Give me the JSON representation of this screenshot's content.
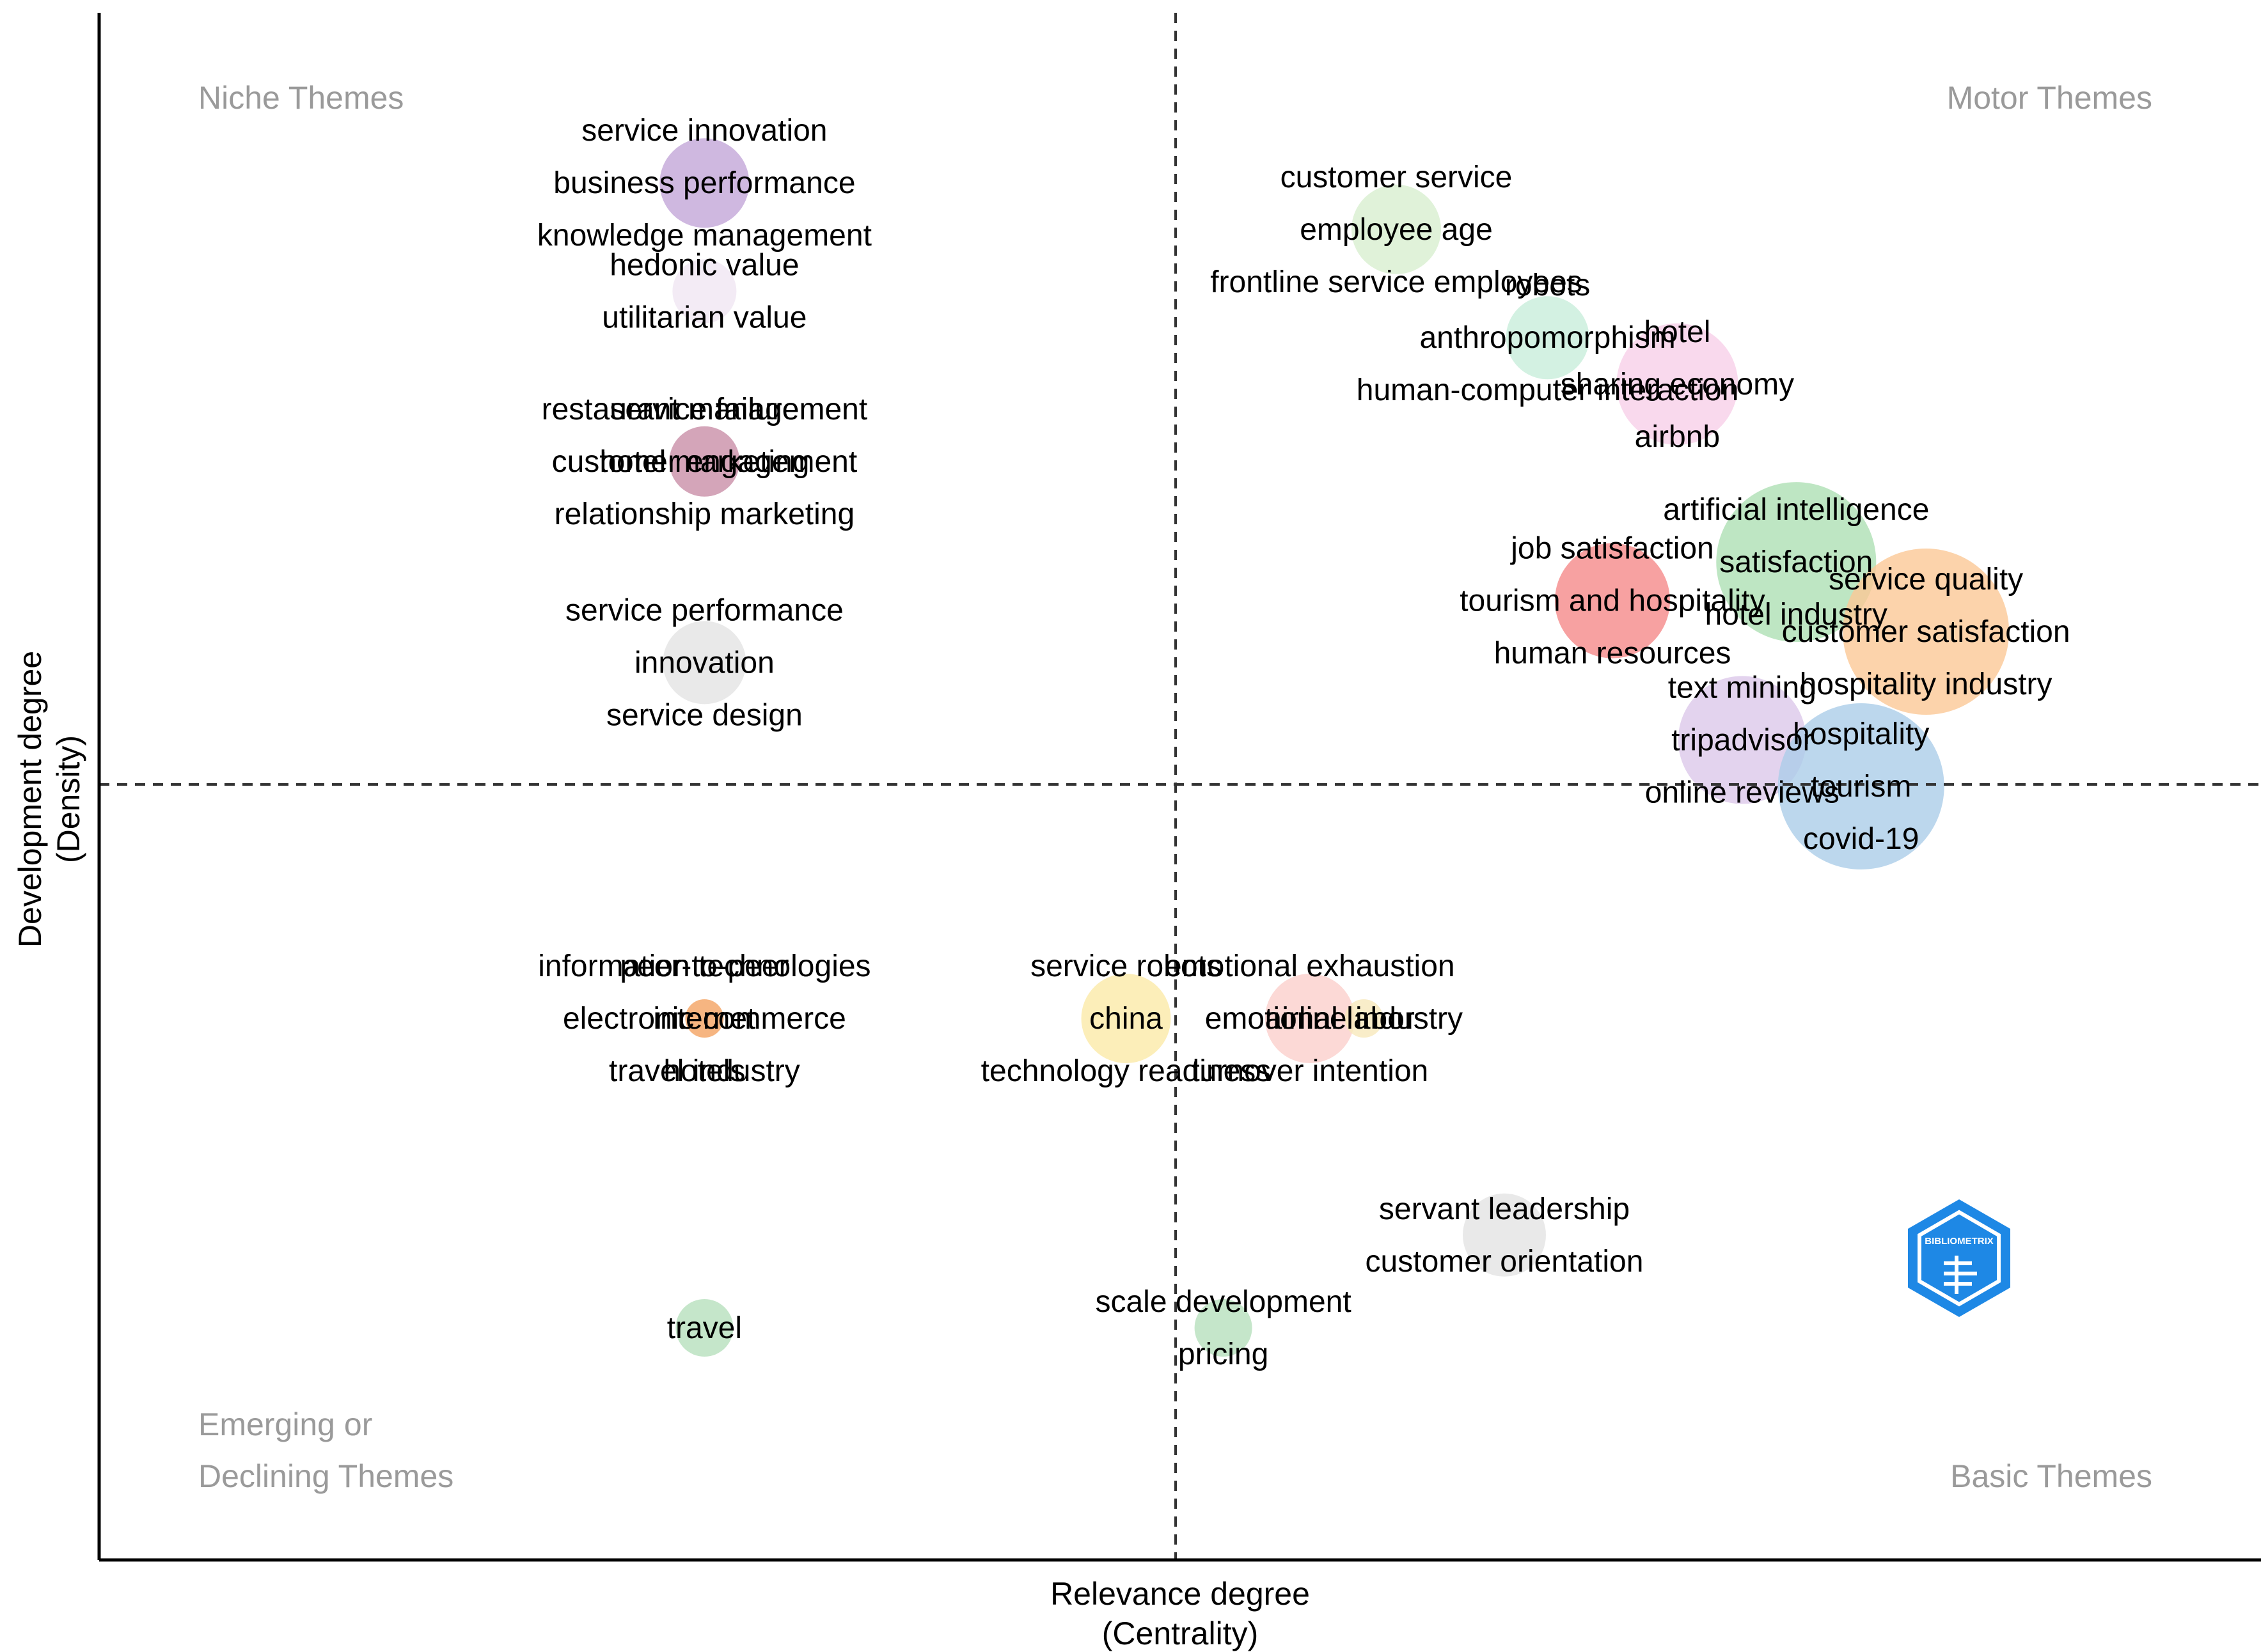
{
  "chart_data": {
    "type": "scatter",
    "subtype": "thematic-map",
    "xlabel": [
      "Relevance degree",
      "(Centrality)"
    ],
    "ylabel": [
      "Development degree",
      "(Density)"
    ],
    "xlim": [
      0,
      10
    ],
    "ylim": [
      0,
      10
    ],
    "x_ref": 4.75,
    "y_ref": 5.0,
    "grid": false,
    "quadrant_labels": {
      "top_left": [
        "Niche Themes"
      ],
      "top_right": [
        "Motor Themes"
      ],
      "bottom_left": [
        "Emerging or",
        "Declining Themes"
      ],
      "bottom_right": [
        "Basic Themes"
      ]
    },
    "logo": {
      "text": "BIBLIOMETRIX",
      "color": "#1e88e5"
    },
    "themes": [
      {
        "x": 2.8,
        "y": 8.9,
        "size": 1.0,
        "color": "#c3a6d8",
        "labels": [
          "service innovation",
          "business performance",
          "knowledge management"
        ]
      },
      {
        "x": 2.8,
        "y": 8.2,
        "size": 0.6,
        "color": "#f0e6f2",
        "labels": [
          "hedonic value",
          "utilitarian value"
        ]
      },
      {
        "x": 2.8,
        "y": 7.1,
        "size": 0.7,
        "color": "#c98fa8",
        "labels": [
          "restaurant management",
          "hotel marketing",
          "relationship marketing",
          "service failure",
          "customer engagement"
        ]
      },
      {
        "x": 2.8,
        "y": 5.8,
        "size": 0.9,
        "color": "#e3e3e3",
        "labels": [
          "service performance",
          "innovation",
          "service design"
        ]
      },
      {
        "x": 6.0,
        "y": 8.6,
        "size": 1.0,
        "color": "#d8efcf",
        "labels": [
          "customer service",
          "employee age",
          "frontline service employees"
        ]
      },
      {
        "x": 6.7,
        "y": 7.9,
        "size": 0.9,
        "color": "#c8eedb",
        "labels": [
          "robots",
          "anthropomorphism",
          "human-computer interaction"
        ]
      },
      {
        "x": 7.3,
        "y": 7.6,
        "size": 1.5,
        "color": "#f8d0e8",
        "labels": [
          "hotel",
          "sharing economy",
          "airbnb"
        ]
      },
      {
        "x": 7.0,
        "y": 6.2,
        "size": 1.4,
        "color": "#f58a8a",
        "labels": [
          "job satisfaction",
          "tourism and hospitality",
          "human resources"
        ]
      },
      {
        "x": 7.85,
        "y": 6.45,
        "size": 2.1,
        "color": "#aee0b4",
        "labels": [
          "artificial intelligence",
          "satisfaction",
          "hotel industry"
        ]
      },
      {
        "x": 8.45,
        "y": 6.0,
        "size": 2.2,
        "color": "#fbc896",
        "labels": [
          "service quality",
          "customer satisfaction",
          "hospitality industry"
        ]
      },
      {
        "x": 7.6,
        "y": 5.3,
        "size": 1.6,
        "color": "#dcc8ea",
        "labels": [
          "text mining",
          "tripadvisor",
          "online reviews"
        ]
      },
      {
        "x": 8.15,
        "y": 5.0,
        "size": 2.2,
        "color": "#abcde8",
        "labels": [
          "hospitality",
          "tourism",
          "covid-19"
        ]
      },
      {
        "x": 2.8,
        "y": 3.5,
        "size": 0.2,
        "color": "#f4a361",
        "labels": [
          "information technologies",
          "electronic commerce",
          "travel industry",
          "peer-to-peer",
          "internet",
          "hotels"
        ]
      },
      {
        "x": 4.75,
        "y": 3.5,
        "size": 1.0,
        "color": "#fbeaa8",
        "labels": [
          "service robots",
          "china",
          "technology readiness"
        ]
      },
      {
        "x": 5.6,
        "y": 3.5,
        "size": 1.0,
        "color": "#fbd0cc",
        "labels": [
          "emotional exhaustion",
          "emotional labor",
          "turnover intention"
        ]
      },
      {
        "x": 5.85,
        "y": 3.5,
        "size": 0.2,
        "color": "#f8e8bc",
        "labels": [
          "airline industry"
        ]
      },
      {
        "x": 6.5,
        "y": 2.1,
        "size": 0.9,
        "color": "#e3e3e3",
        "labels": [
          "servant leadership",
          "customer orientation"
        ]
      },
      {
        "x": 2.8,
        "y": 1.5,
        "size": 0.5,
        "color": "#b7e0bd",
        "labels": [
          "travel"
        ]
      },
      {
        "x": 5.2,
        "y": 1.5,
        "size": 0.5,
        "color": "#b7e0bd",
        "labels": [
          "scale development",
          "pricing"
        ]
      }
    ]
  }
}
